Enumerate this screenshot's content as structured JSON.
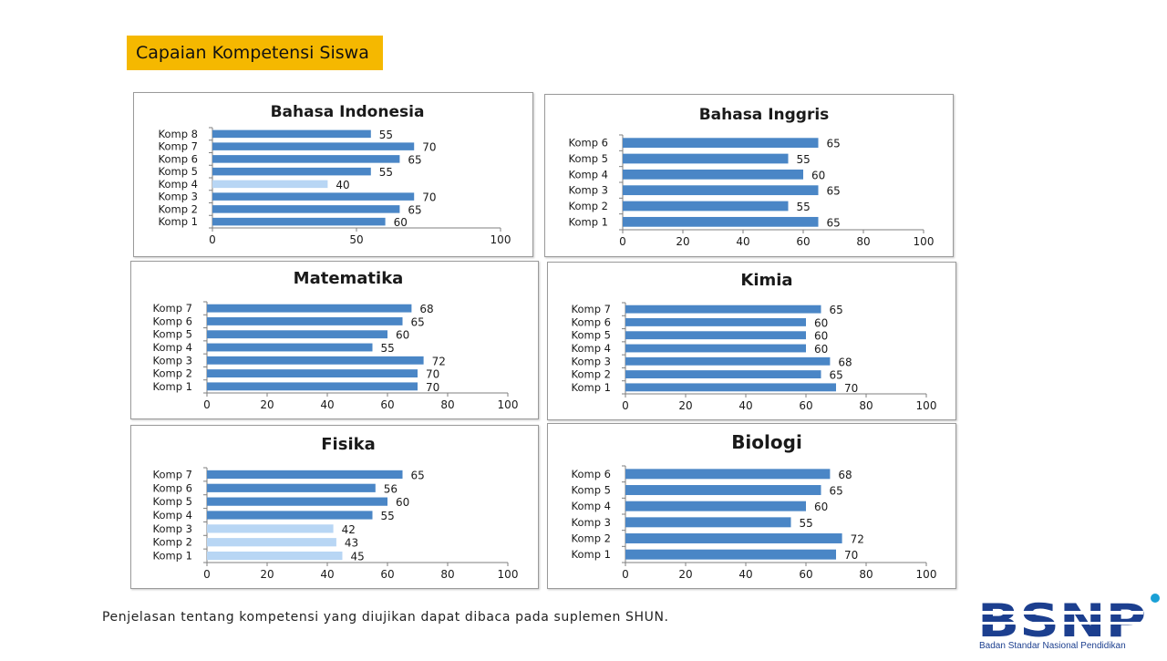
{
  "slide_title": "Capaian Kompetensi Siswa",
  "footnote": "Penjelasan tentang kompetensi yang diujikan dapat dibaca pada suplemen SHUN.",
  "logo": {
    "wordmark": "BSNP",
    "subtitle": "Badan Standar Nasional Pendidikan"
  },
  "colors": {
    "bar": "#4a86c6",
    "bar_low": "#b8d6f4",
    "title_tag": "#f5b800"
  },
  "chart_data": [
    {
      "type": "bar",
      "orientation": "horizontal",
      "title": "Bahasa Indonesia",
      "categories": [
        "Komp 1",
        "Komp 2",
        "Komp 3",
        "Komp 4",
        "Komp 5",
        "Komp 6",
        "Komp 7",
        "Komp 8"
      ],
      "values": [
        60,
        65,
        70,
        40,
        55,
        65,
        70,
        55
      ],
      "highlight_low": [
        false,
        false,
        false,
        true,
        false,
        false,
        false,
        false
      ],
      "xlim": [
        0,
        100
      ],
      "xticks": [
        0,
        50,
        100
      ],
      "xlabel": "",
      "ylabel": "",
      "grid": false,
      "legend": "none"
    },
    {
      "type": "bar",
      "orientation": "horizontal",
      "title": "Bahasa Inggris",
      "categories": [
        "Komp 1",
        "Komp 2",
        "Komp 3",
        "Komp 4",
        "Komp 5",
        "Komp 6"
      ],
      "values": [
        65,
        55,
        65,
        60,
        55,
        65
      ],
      "highlight_low": [
        false,
        false,
        false,
        false,
        false,
        false
      ],
      "xlim": [
        0,
        100
      ],
      "xticks": [
        0,
        20,
        40,
        60,
        80,
        100
      ],
      "xlabel": "",
      "ylabel": "",
      "grid": false,
      "legend": "none"
    },
    {
      "type": "bar",
      "orientation": "horizontal",
      "title": "Matematika",
      "categories": [
        "Komp 1",
        "Komp 2",
        "Komp 3",
        "Komp 4",
        "Komp 5",
        "Komp 6",
        "Komp 7"
      ],
      "values": [
        70,
        70,
        72,
        55,
        60,
        65,
        68
      ],
      "highlight_low": [
        false,
        false,
        false,
        false,
        false,
        false,
        false
      ],
      "xlim": [
        0,
        100
      ],
      "xticks": [
        0,
        20,
        40,
        60,
        80,
        100
      ],
      "xlabel": "",
      "ylabel": "",
      "grid": false,
      "legend": "none"
    },
    {
      "type": "bar",
      "orientation": "horizontal",
      "title": "Kimia",
      "categories": [
        "Komp 1",
        "Komp 2",
        "Komp 3",
        "Komp 4",
        "Komp 5",
        "Komp 6",
        "Komp 7"
      ],
      "values": [
        70,
        65,
        68,
        60,
        60,
        60,
        65
      ],
      "highlight_low": [
        false,
        false,
        false,
        false,
        false,
        false,
        false
      ],
      "xlim": [
        0,
        100
      ],
      "xticks": [
        0,
        20,
        40,
        60,
        80,
        100
      ],
      "xlabel": "",
      "ylabel": "",
      "grid": false,
      "legend": "none"
    },
    {
      "type": "bar",
      "orientation": "horizontal",
      "title": "Fisika",
      "categories": [
        "Komp 1",
        "Komp 2",
        "Komp 3",
        "Komp 4",
        "Komp 5",
        "Komp 6",
        "Komp 7"
      ],
      "values": [
        45,
        43,
        42,
        55,
        60,
        56,
        65
      ],
      "highlight_low": [
        true,
        true,
        true,
        false,
        false,
        false,
        false
      ],
      "xlim": [
        0,
        100
      ],
      "xticks": [
        0,
        20,
        40,
        60,
        80,
        100
      ],
      "xlabel": "",
      "ylabel": "",
      "grid": false,
      "legend": "none"
    },
    {
      "type": "bar",
      "orientation": "horizontal",
      "title": "Biologi",
      "categories": [
        "Komp 1",
        "Komp 2",
        "Komp 3",
        "Komp 4",
        "Komp 5",
        "Komp 6"
      ],
      "values": [
        70,
        72,
        55,
        60,
        65,
        68
      ],
      "highlight_low": [
        false,
        false,
        false,
        false,
        false,
        false
      ],
      "xlim": [
        0,
        100
      ],
      "xticks": [
        0,
        20,
        40,
        60,
        80,
        100
      ],
      "xlabel": "",
      "ylabel": "",
      "grid": false,
      "legend": "none"
    }
  ]
}
